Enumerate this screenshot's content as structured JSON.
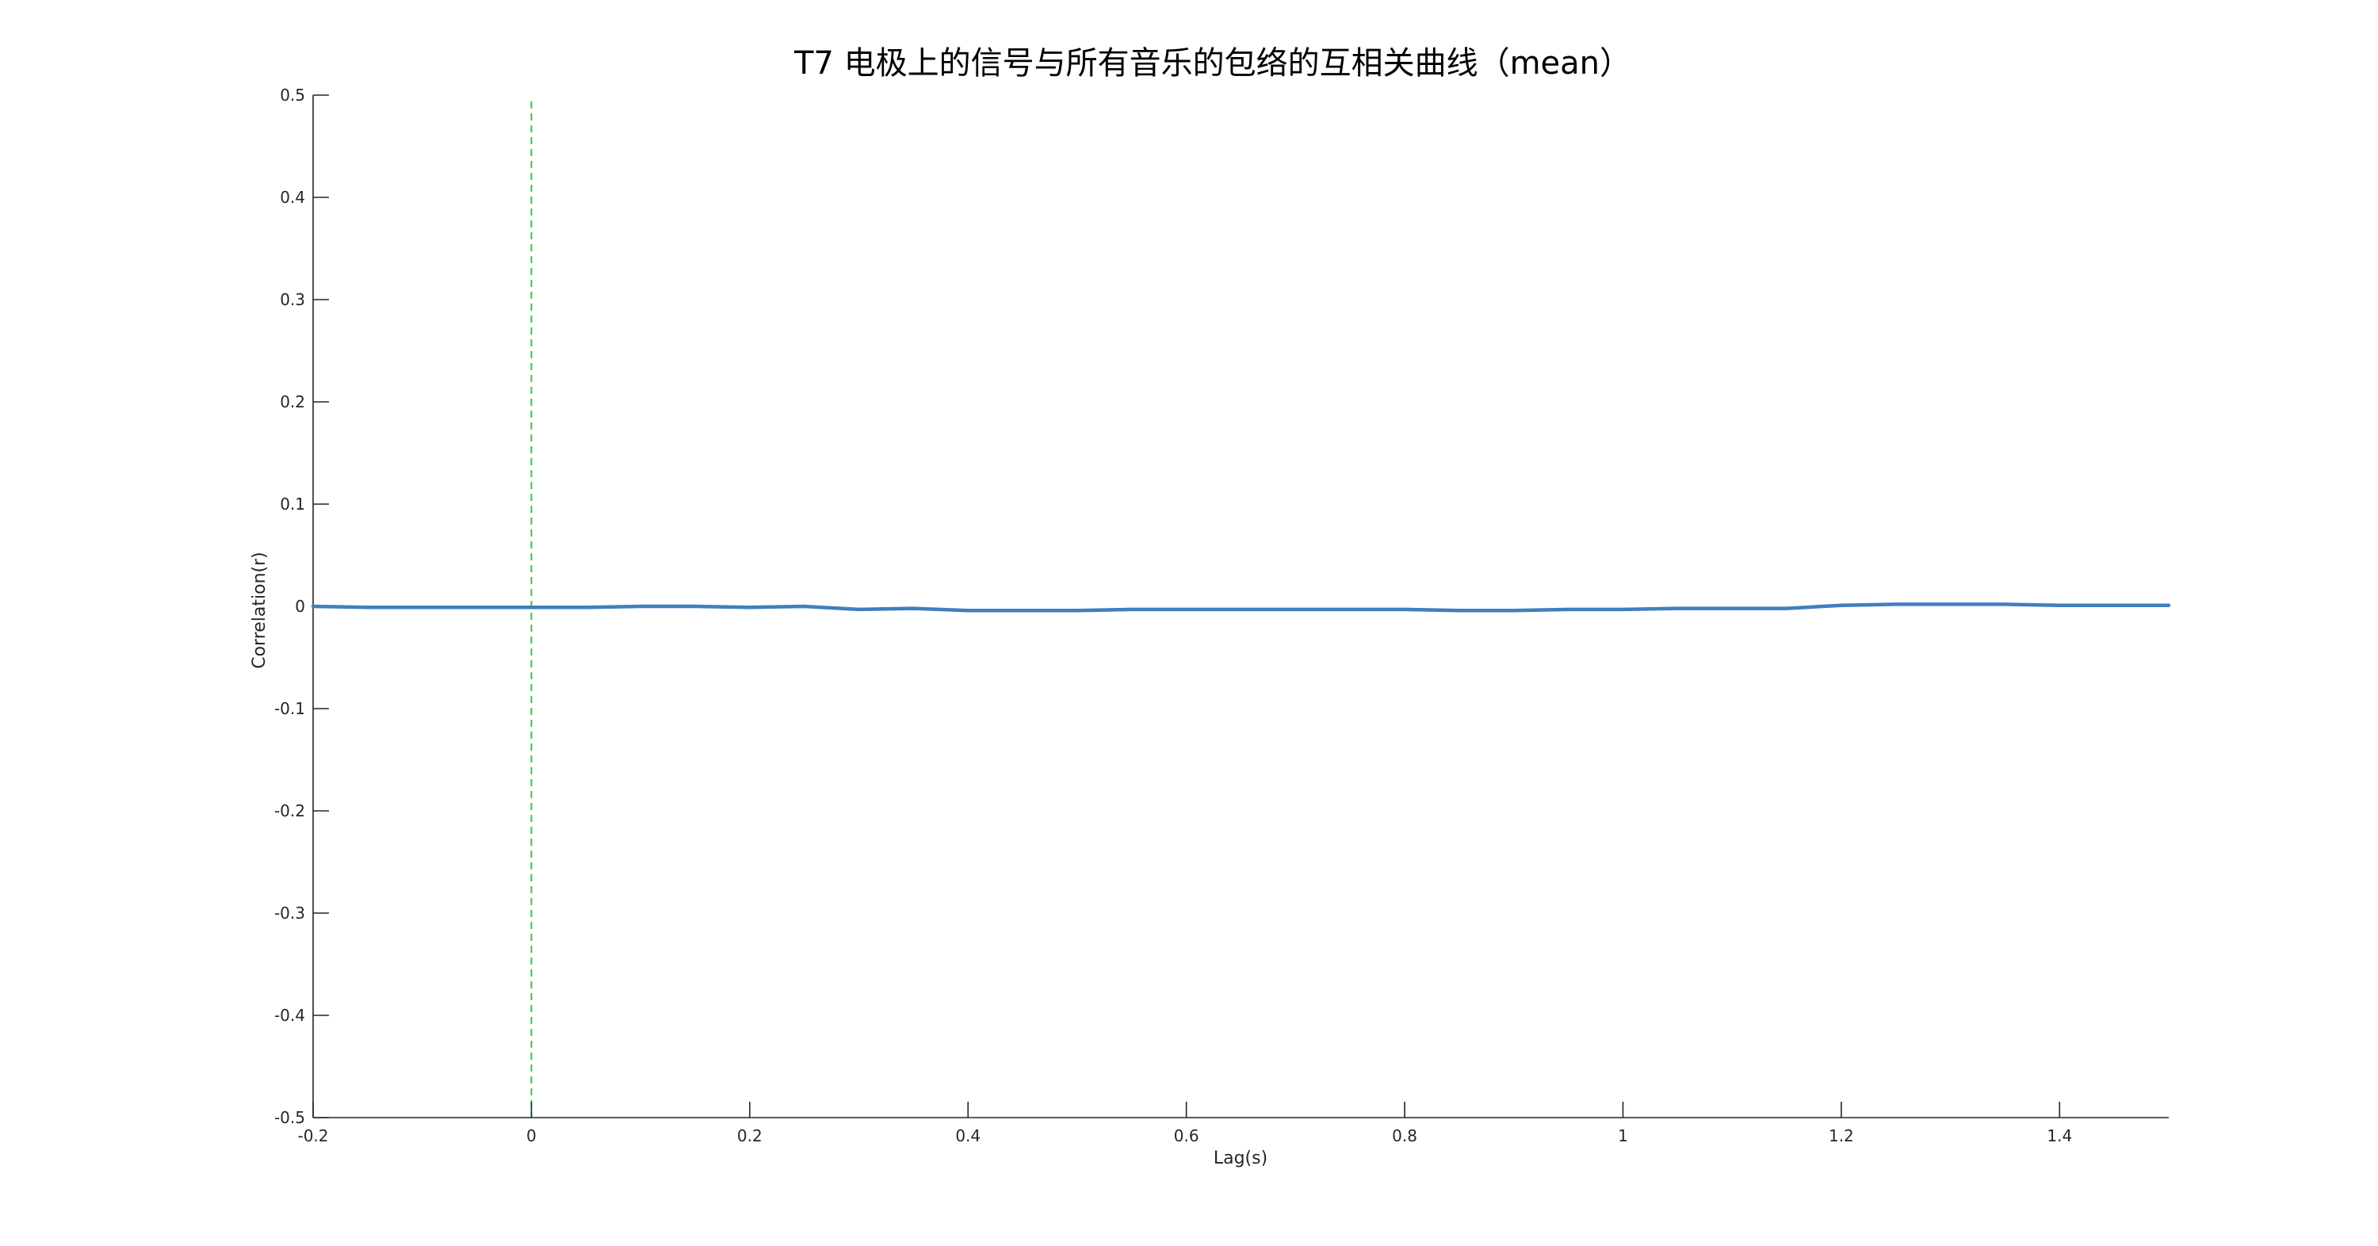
{
  "chart_data": {
    "type": "line",
    "title": "T7 电极上的信号与所有音乐的包络的互相关曲线（mean）",
    "xlabel": "Lag(s)",
    "ylabel": "Correlation(r)",
    "xlim": [
      -0.2,
      1.5
    ],
    "ylim": [
      -0.5,
      0.5
    ],
    "xticks": [
      -0.2,
      0,
      0.2,
      0.4,
      0.6,
      0.8,
      1,
      1.2,
      1.4
    ],
    "xtick_labels": [
      "-0.2",
      "0",
      "0.2",
      "0.4",
      "0.6",
      "0.8",
      "1",
      "1.2",
      "1.4"
    ],
    "yticks": [
      -0.5,
      -0.4,
      -0.3,
      -0.2,
      -0.1,
      0,
      0.1,
      0.2,
      0.3,
      0.4,
      0.5
    ],
    "ytick_labels": [
      "-0.5",
      "-0.4",
      "-0.3",
      "-0.2",
      "-0.1",
      "0",
      "0.1",
      "0.2",
      "0.3",
      "0.4",
      "0.5"
    ],
    "grid": false,
    "legend": "none",
    "series": [
      {
        "color": "#3f7fbf",
        "x": [
          -0.2,
          -0.15,
          -0.1,
          -0.05,
          0,
          0.05,
          0.1,
          0.15,
          0.2,
          0.25,
          0.3,
          0.35,
          0.4,
          0.45,
          0.5,
          0.55,
          0.6,
          0.65,
          0.7,
          0.75,
          0.8,
          0.85,
          0.9,
          0.95,
          1,
          1.05,
          1.1,
          1.15,
          1.2,
          1.25,
          1.3,
          1.35,
          1.4,
          1.45,
          1.5
        ],
        "y": [
          0,
          -0.001,
          -0.001,
          -0.001,
          -0.001,
          -0.001,
          0,
          0,
          -0.001,
          0,
          -0.003,
          -0.002,
          -0.004,
          -0.004,
          -0.004,
          -0.003,
          -0.003,
          -0.003,
          -0.003,
          -0.003,
          -0.003,
          -0.004,
          -0.004,
          -0.003,
          -0.003,
          -0.002,
          -0.002,
          -0.002,
          0.001,
          0.002,
          0.002,
          0.002,
          0.001,
          0.001,
          0.001
        ]
      }
    ],
    "reference_lines": [
      {
        "orientation": "vertical",
        "x": 0,
        "color": "#2ecc40",
        "style": "dashed"
      }
    ]
  }
}
